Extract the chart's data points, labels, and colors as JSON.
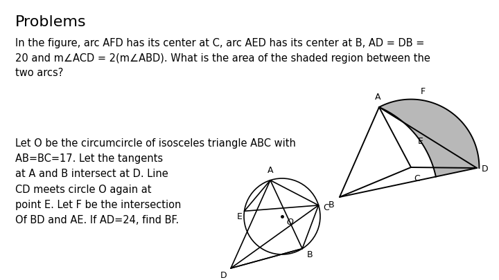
{
  "title": "Problems",
  "title_fontsize": 16,
  "body_fontsize": 10.5,
  "bg_color": "#ffffff",
  "text_color": "#000000",
  "shaded_color": "#b8b8b8",
  "line_color": "#000000",
  "problem1_text": "In the figure, arc AFD has its center at C, arc AED has its center at B, AD = DB =\n20 and m∠ACD = 2(m∠ABD). What is the area of the shaded region between the\ntwo arcs?",
  "problem2_text": "Let O be the circumcircle of isosceles triangle ABC with\nAB=BC=17. Let the tangents\nat A and B intersect at D. Line\nCD meets circle O again at\npoint E. Let F be the intersection\nOf BD and AE. If AD=24, find BF."
}
